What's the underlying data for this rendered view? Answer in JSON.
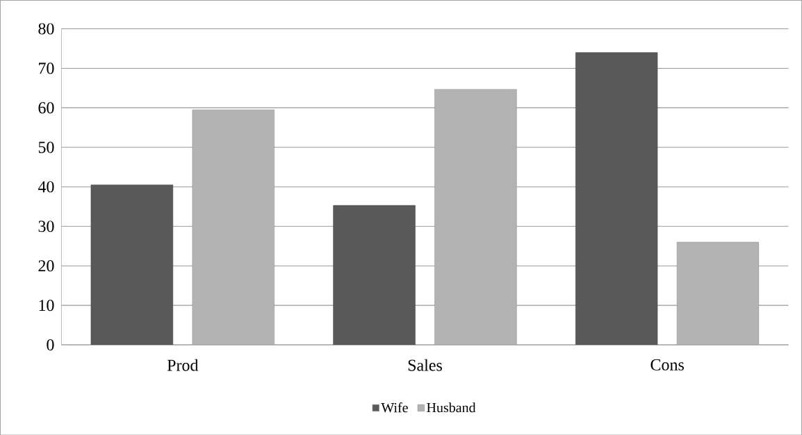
{
  "chart_data": {
    "type": "bar",
    "categories": [
      "Prod",
      "Sales",
      "Cons"
    ],
    "series": [
      {
        "name": "Wife",
        "color": "#595959",
        "values": [
          40.5,
          35.3,
          74
        ]
      },
      {
        "name": "Husband",
        "color": "#b3b3b3",
        "values": [
          59.5,
          64.7,
          26
        ]
      }
    ],
    "ylim": [
      0,
      80
    ],
    "yticks": [
      0,
      10,
      20,
      30,
      40,
      50,
      60,
      70,
      80
    ],
    "grid": "y",
    "legend": "bottom"
  }
}
